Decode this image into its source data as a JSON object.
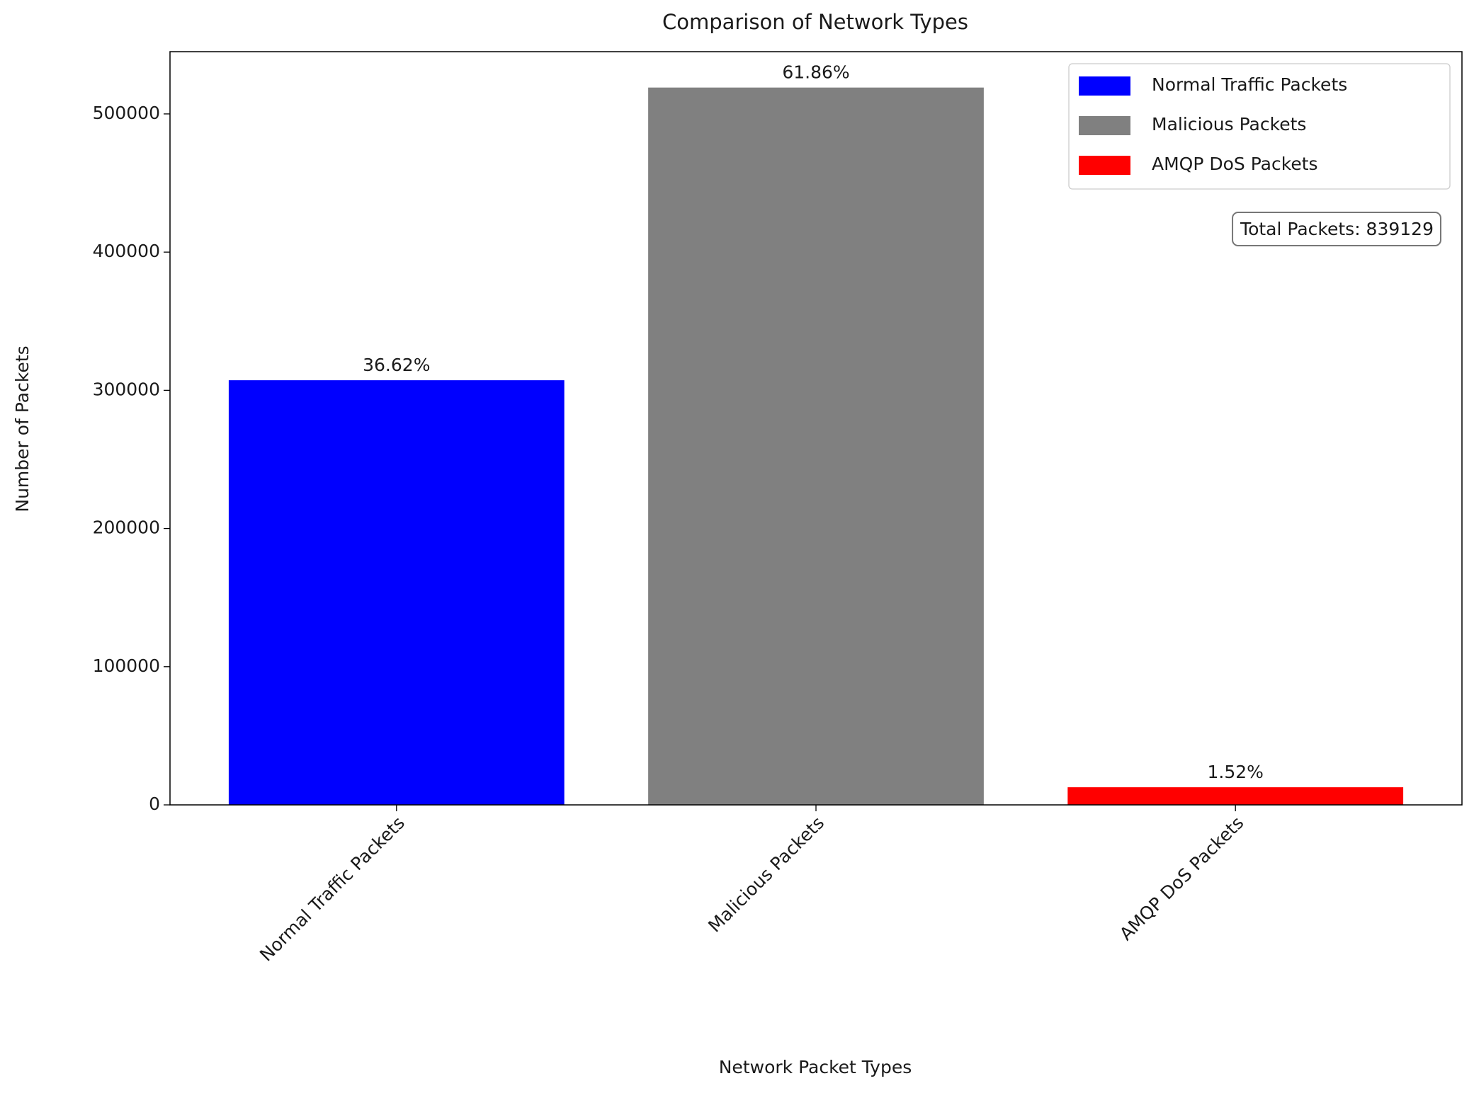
{
  "chart_data": {
    "type": "bar",
    "title": "Comparison of Network Types",
    "x_label": "Network Packet Types",
    "y_label": "Number of Packets",
    "categories": [
      "Normal Traffic Packets",
      "Malicious Packets",
      "AMQP DoS Packets"
    ],
    "values": [
      307289,
      519085,
      12755
    ],
    "value_labels": [
      "36.62%",
      "61.86%",
      "1.52%"
    ],
    "colors": [
      "#0000ff",
      "#808080",
      "#ff0000"
    ],
    "ylim": [
      0,
      545039
    ],
    "yticks": [
      0,
      100000,
      200000,
      300000,
      400000,
      500000
    ],
    "grid": false,
    "legend": "upper right",
    "annotation": "Total Packets: 839129"
  }
}
